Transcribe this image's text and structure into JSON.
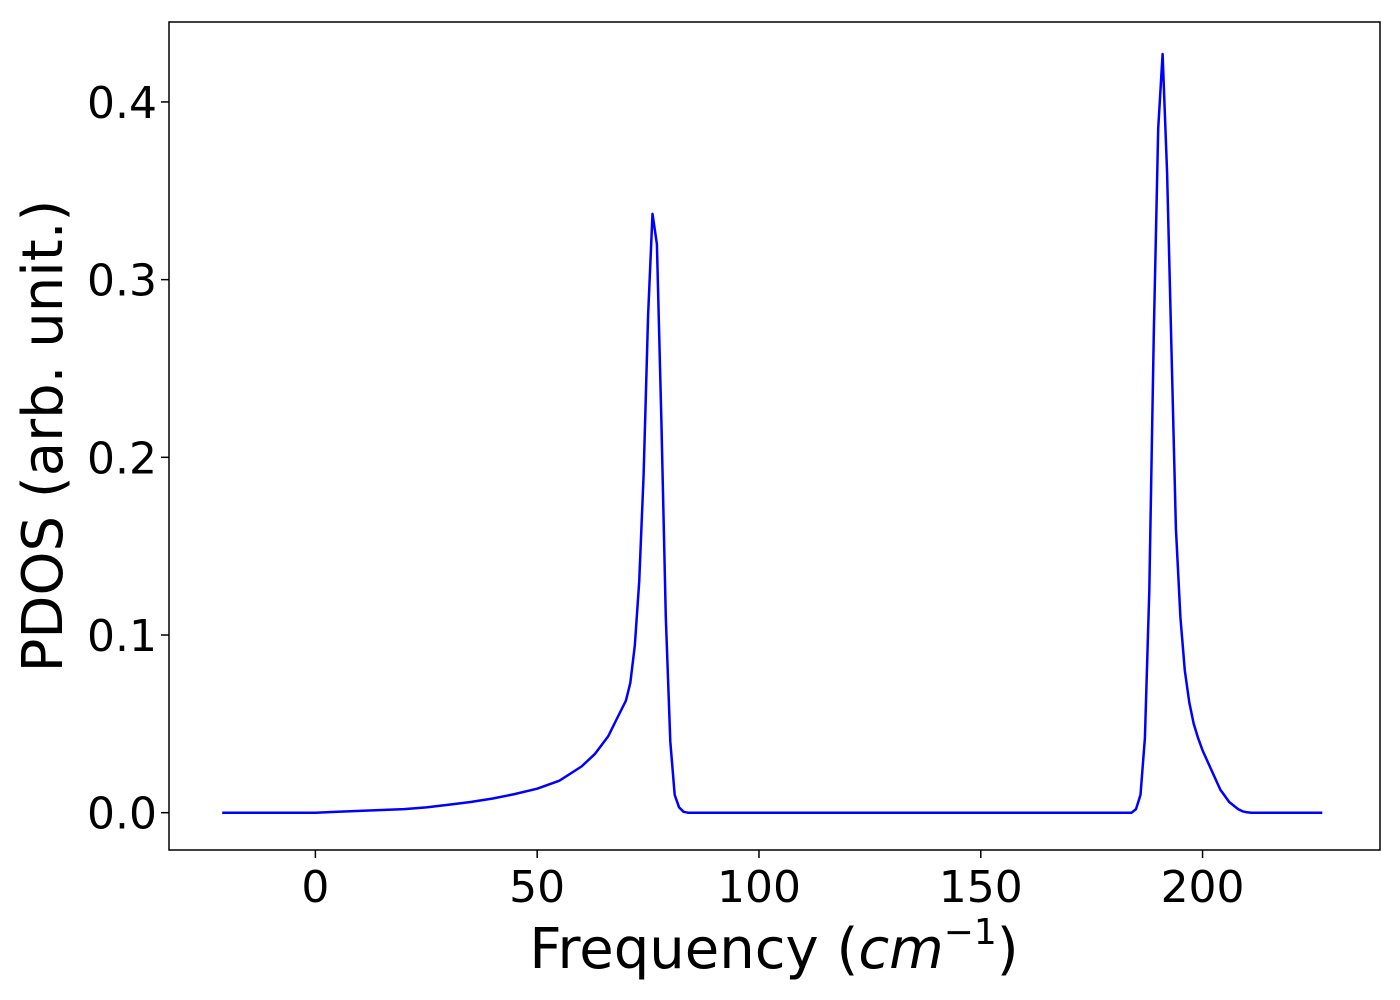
{
  "chart_data": {
    "type": "line",
    "xlabel_text": "Frequency (",
    "xlabel_math": "cm",
    "xlabel_sup": "−1",
    "xlabel_close": ")",
    "ylabel": "PDOS (arb. unit.)",
    "xlim": [
      -33,
      240
    ],
    "ylim": [
      -0.021,
      0.445
    ],
    "xticks": [
      0,
      50,
      100,
      150,
      200
    ],
    "xtick_labels": [
      "0",
      "50",
      "100",
      "150",
      "200"
    ],
    "yticks": [
      0.0,
      0.1,
      0.2,
      0.3,
      0.4
    ],
    "ytick_labels": [
      "0.0",
      "0.1",
      "0.2",
      "0.3",
      "0.4"
    ],
    "grid": false,
    "series": [
      {
        "color": "#0000ff",
        "x": [
          -21,
          0,
          5,
          10,
          15,
          20,
          25,
          30,
          35,
          40,
          45,
          50,
          55,
          60,
          63,
          66,
          68,
          70,
          71,
          72,
          73,
          74,
          75,
          76,
          77,
          78,
          79,
          80,
          81,
          82,
          83,
          84,
          85,
          100,
          150,
          184,
          185,
          186,
          187,
          188,
          189,
          190,
          191,
          192,
          193,
          194,
          195,
          196,
          197,
          198,
          199,
          200,
          202,
          204,
          206,
          208,
          209,
          210,
          211,
          212,
          215,
          227
        ],
        "y": [
          0.0,
          0.0,
          0.0005,
          0.001,
          0.0015,
          0.002,
          0.003,
          0.0045,
          0.006,
          0.008,
          0.0105,
          0.0135,
          0.018,
          0.026,
          0.033,
          0.043,
          0.053,
          0.063,
          0.073,
          0.094,
          0.13,
          0.19,
          0.28,
          0.337,
          0.32,
          0.22,
          0.11,
          0.04,
          0.01,
          0.003,
          0.0005,
          0.0,
          0.0,
          0.0,
          0.0,
          0.0,
          0.002,
          0.01,
          0.042,
          0.125,
          0.27,
          0.385,
          0.427,
          0.36,
          0.26,
          0.16,
          0.11,
          0.08,
          0.062,
          0.05,
          0.042,
          0.035,
          0.024,
          0.013,
          0.006,
          0.002,
          0.0008,
          0.0002,
          0.0,
          0.0,
          0.0,
          0.0
        ]
      }
    ]
  }
}
